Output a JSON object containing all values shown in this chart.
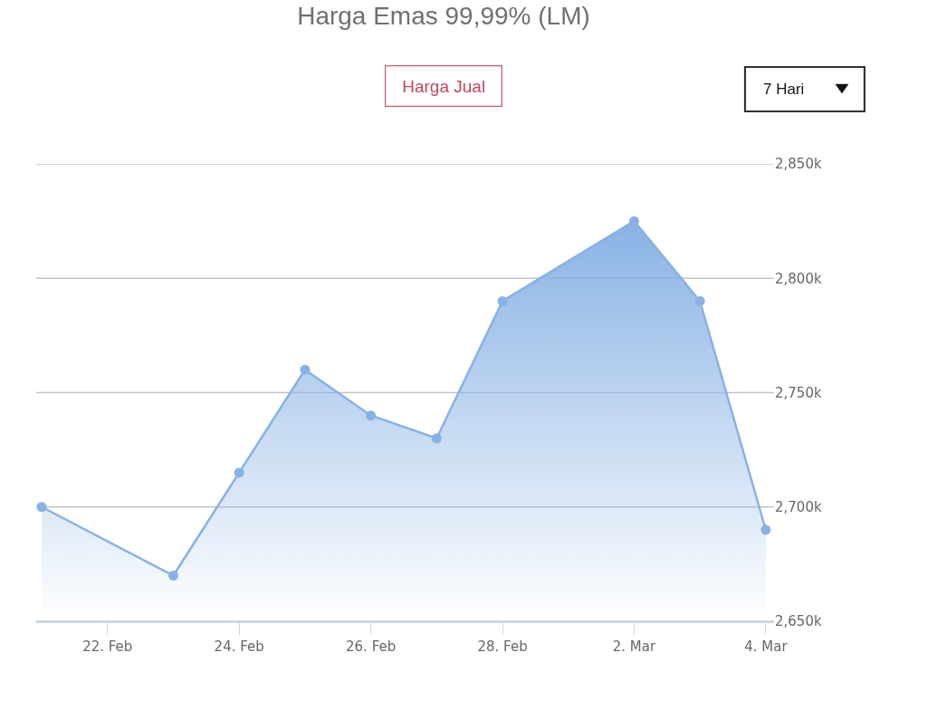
{
  "chart_data": {
    "type": "area",
    "title": "Harga Emas 99,99% (LM)",
    "x": [
      "--02-21",
      "--02-23",
      "--02-24",
      "--02-25",
      "--02-26",
      "--02-27",
      "--02-28",
      "--03-02",
      "--03-03",
      "--03-04"
    ],
    "values": [
      2700000,
      2670000,
      2715000,
      2760000,
      2740000,
      2730000,
      2790000,
      2825000,
      2790000,
      2690000
    ],
    "color": "#88b2e4",
    "xlim": [
      "--02-20T22:00",
      "--03-04T03:00"
    ],
    "xticks": [
      {
        "value": "--02-22",
        "label": "22. Feb"
      },
      {
        "value": "--02-24",
        "label": "24. Feb"
      },
      {
        "value": "--02-26",
        "label": "26. Feb"
      },
      {
        "value": "--02-28",
        "label": "28. Feb"
      },
      {
        "value": "--03-02",
        "label": "2. Mar"
      },
      {
        "value": "--03-04",
        "label": "4. Mar"
      }
    ],
    "ylim": [
      2650000,
      2850000
    ],
    "yticks": [
      {
        "value": 2650000,
        "label": "2,650k"
      },
      {
        "value": 2700000,
        "label": "2,700k"
      },
      {
        "value": 2750000,
        "label": "2,750k"
      },
      {
        "value": 2800000,
        "label": "2,800k"
      },
      {
        "value": 2850000,
        "label": "2,850k"
      }
    ],
    "grid": "y",
    "marker": "circle",
    "annotations": [
      "Harga Jual",
      "7 Hari"
    ]
  }
}
